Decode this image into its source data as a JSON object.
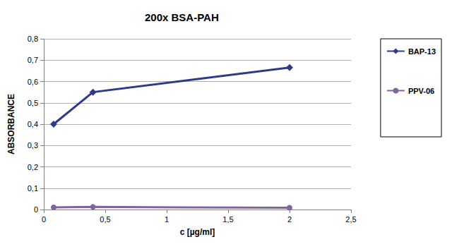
{
  "chart_data": {
    "type": "line",
    "title": "200x BSA-PAH",
    "x_label": "c [µg/ml]",
    "y_label": "ABSORBANCE",
    "xlim": [
      0,
      2.5
    ],
    "xticks": [
      0,
      {
        "value": 0.5,
        "label": "0,5"
      },
      1,
      {
        "value": 1.5,
        "label": "1,5"
      },
      2,
      {
        "value": 2.5,
        "label": "2,5"
      }
    ],
    "ylim": [
      0,
      0.8
    ],
    "yticks": [
      0,
      {
        "value": 0.1,
        "label": "0,1"
      },
      {
        "value": 0.2,
        "label": "0,2"
      },
      {
        "value": 0.3,
        "label": "0,3"
      },
      {
        "value": 0.4,
        "label": "0,4"
      },
      {
        "value": 0.5,
        "label": "0,5"
      },
      {
        "value": 0.6,
        "label": "0,6"
      },
      {
        "value": 0.7,
        "label": "0,7"
      },
      {
        "value": 0.8,
        "label": "0,8"
      }
    ],
    "grid": true,
    "legend": "right",
    "series": [
      {
        "name": "BAP-13",
        "color": "#2e3a8c",
        "marker": "diamond",
        "line_style": "solid",
        "x": [
          0.08,
          0.4,
          2
        ],
        "values": [
          0.4,
          0.55,
          0.665
        ]
      },
      {
        "name": "PPV-06",
        "color": "#8064a2",
        "marker": "circle",
        "line_style": "solid",
        "x": [
          0.08,
          0.4,
          2
        ],
        "values": [
          0.01,
          0.012,
          0.008
        ]
      }
    ]
  }
}
